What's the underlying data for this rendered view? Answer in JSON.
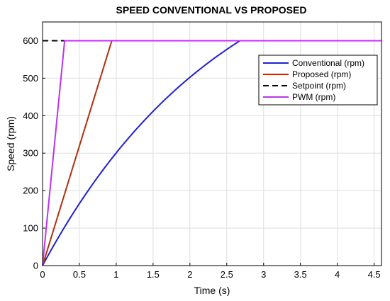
{
  "chart_data": {
    "type": "line",
    "title": "SPEED CONVENTIONAL VS PROPOSED",
    "xlabel": "Time (s)",
    "ylabel": "Speed (rpm)",
    "xlim": [
      0,
      4.6
    ],
    "ylim": [
      0,
      650
    ],
    "xticks": [
      0,
      0.5,
      1,
      1.5,
      2,
      2.5,
      3,
      3.5,
      4,
      4.5
    ],
    "xtick_labels": [
      "0",
      "0.5",
      "1",
      "1.5",
      "2",
      "2.5",
      "3",
      "3.5",
      "4",
      "4.5"
    ],
    "yticks": [
      0,
      100,
      200,
      300,
      400,
      500,
      600
    ],
    "ytick_labels": [
      "0",
      "100",
      "200",
      "300",
      "400",
      "500",
      "600"
    ],
    "grid": true,
    "legend_position": "top-right",
    "series": [
      {
        "name": "Conventional (rpm)",
        "color": "#1f1fd6",
        "dash": "solid",
        "x": [
          0,
          0.5,
          1.0,
          1.5,
          2.0,
          2.5,
          2.68,
          4.6
        ],
        "y": [
          0,
          130,
          258,
          375,
          480,
          570,
          600,
          600
        ]
      },
      {
        "name": "Proposed (rpm)",
        "color": "#b03010",
        "dash": "solid",
        "x": [
          0,
          0.94,
          4.6
        ],
        "y": [
          0,
          600,
          600
        ]
      },
      {
        "name": "Setpoint (rpm)",
        "color": "#000000",
        "dash": "dashed",
        "x": [
          0,
          4.6
        ],
        "y": [
          600,
          600
        ]
      },
      {
        "name": "PWM (rpm)",
        "color": "#bb33ee",
        "dash": "solid",
        "x": [
          0,
          0.3,
          4.6
        ],
        "y": [
          0,
          600,
          600
        ]
      }
    ]
  }
}
